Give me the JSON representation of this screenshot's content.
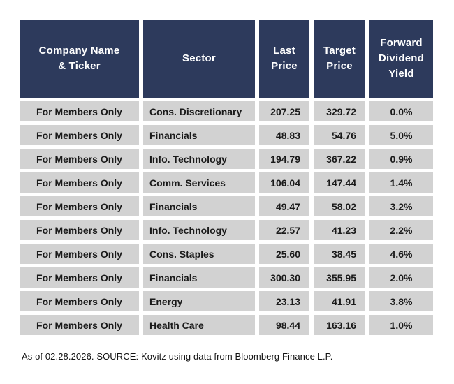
{
  "chart_data": {
    "type": "table",
    "header": {
      "company": "Company Name\n& Ticker",
      "sector": "Sector",
      "last_price": "Last\nPrice",
      "target_price": "Target\nPrice",
      "dividend_yield": "Forward\nDividend\nYield"
    },
    "rows": [
      {
        "company": "For Members Only",
        "sector": "Cons. Discretionary",
        "last_price": "207.25",
        "target_price": "329.72",
        "dividend_yield": "0.0%"
      },
      {
        "company": "For Members Only",
        "sector": "Financials",
        "last_price": "48.83",
        "target_price": "54.76",
        "dividend_yield": "5.0%"
      },
      {
        "company": "For Members Only",
        "sector": "Info. Technology",
        "last_price": "194.79",
        "target_price": "367.22",
        "dividend_yield": "0.9%"
      },
      {
        "company": "For Members Only",
        "sector": "Comm. Services",
        "last_price": "106.04",
        "target_price": "147.44",
        "dividend_yield": "1.4%"
      },
      {
        "company": "For Members Only",
        "sector": "Financials",
        "last_price": "49.47",
        "target_price": "58.02",
        "dividend_yield": "3.2%"
      },
      {
        "company": "For Members Only",
        "sector": "Info. Technology",
        "last_price": "22.57",
        "target_price": "41.23",
        "dividend_yield": "2.2%"
      },
      {
        "company": "For Members Only",
        "sector": "Cons. Staples",
        "last_price": "25.60",
        "target_price": "38.45",
        "dividend_yield": "4.6%"
      },
      {
        "company": "For Members Only",
        "sector": "Financials",
        "last_price": "300.30",
        "target_price": "355.95",
        "dividend_yield": "2.0%"
      },
      {
        "company": "For Members Only",
        "sector": "Energy",
        "last_price": "23.13",
        "target_price": "41.91",
        "dividend_yield": "3.8%"
      },
      {
        "company": "For Members Only",
        "sector": "Health Care",
        "last_price": "98.44",
        "target_price": "163.16",
        "dividend_yield": "1.0%"
      }
    ],
    "source_note": "As of 02.28.2026. SOURCE: Kovitz using data from Bloomberg Finance L.P.",
    "colors": {
      "header_bg": "#2d3a5c",
      "header_text": "#ffffff",
      "row_bg": "#d2d2d2",
      "row_text": "#1a1a1a",
      "background": "#ffffff"
    }
  }
}
